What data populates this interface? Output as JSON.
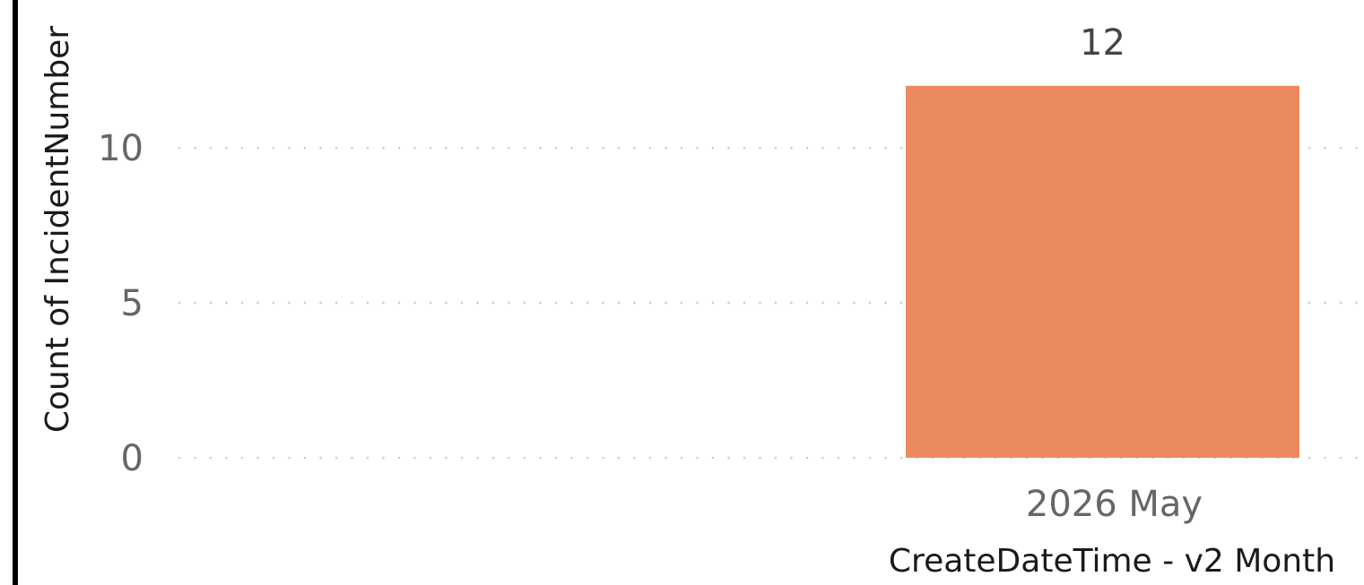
{
  "chart_data": {
    "type": "bar",
    "categories": [
      "2026 May"
    ],
    "values": [
      12
    ],
    "data_labels": [
      "12"
    ],
    "xlabel": "CreateDateTime - v2 Month",
    "ylabel": "Count of IncidentNumber",
    "yticks": [
      0,
      5,
      10
    ],
    "ylim": [
      0,
      12
    ],
    "grid": true,
    "legend": "none",
    "bar_color": "#EB8A5F",
    "grid_color": "#C8C8C8"
  }
}
